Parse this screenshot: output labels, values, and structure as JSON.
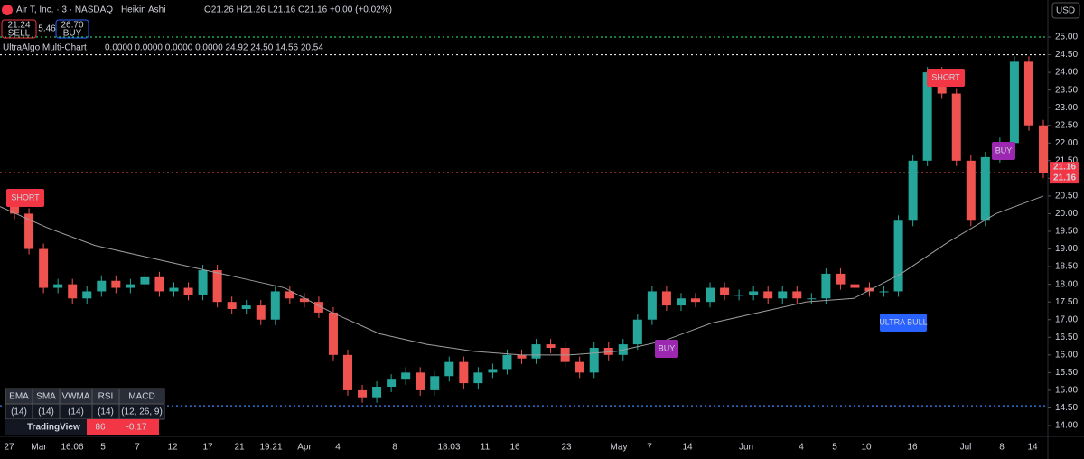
{
  "chart_data": {
    "type": "candlestick",
    "header": {
      "symbol": "Air T, Inc. · 3 · NASDAQ · Heikin Ashi",
      "ohlc": "O21.26 H21.26 L21.16 C21.16 +0.00 (+0.02%)",
      "currency": "USD"
    },
    "trade_box": {
      "sell_price": "21.24",
      "sell": "SELL",
      "spread": "5.46",
      "buy_price": "26.70",
      "buy": "BUY"
    },
    "indicator": {
      "name": "UltraAlgo Multi-Chart",
      "values": "0.0000 0.0000 0.0000 0.0000 24.92 24.50 14.56 20.54"
    },
    "ylim": [
      14,
      25
    ],
    "yticks": [
      {
        "value": 25,
        "label": "25.00"
      },
      {
        "value": 24.5,
        "label": "24.50"
      },
      {
        "value": 24,
        "label": "24.00"
      },
      {
        "value": 23.5,
        "label": "23.50"
      },
      {
        "value": 23,
        "label": "23.00"
      },
      {
        "value": 22.5,
        "label": "22.50"
      },
      {
        "value": 22,
        "label": "22.00"
      },
      {
        "value": 21.5,
        "label": "21.50"
      },
      {
        "value": 21,
        "label": "21.00"
      },
      {
        "value": 20.5,
        "label": "20.50"
      },
      {
        "value": 20,
        "label": "20.00"
      },
      {
        "value": 19.5,
        "label": "19.50"
      },
      {
        "value": 19,
        "label": "19.00"
      },
      {
        "value": 18.5,
        "label": "18.50"
      },
      {
        "value": 18,
        "label": "18.00"
      },
      {
        "value": 17.5,
        "label": "17.50"
      },
      {
        "value": 17,
        "label": "17.00"
      },
      {
        "value": 16.5,
        "label": "16.50"
      },
      {
        "value": 16,
        "label": "16.00"
      },
      {
        "value": 15.5,
        "label": "15.50"
      },
      {
        "value": 15,
        "label": "15.00"
      },
      {
        "value": 14.5,
        "label": "14.50"
      },
      {
        "value": 14,
        "label": "14.00"
      }
    ],
    "time_labels": [
      "27",
      "Mar",
      "16:06",
      "5",
      "7",
      "12",
      "17",
      "21",
      "19:21",
      "Apr",
      "4",
      "8",
      "18:03",
      "11",
      "16",
      "23",
      "May",
      "7",
      "14",
      "Jun",
      "4",
      "5",
      "10",
      "16",
      "Jul",
      "8",
      "14"
    ],
    "series": [
      {
        "name": "Price",
        "values": [
          20.2,
          20.0,
          19.0,
          17.9,
          18.0,
          17.6,
          17.8,
          18.1,
          17.9,
          18.0,
          18.2,
          17.8,
          17.9,
          17.7,
          18.4,
          17.5,
          17.3,
          17.4,
          17.0,
          17.8,
          17.6,
          17.5,
          17.2,
          16.0,
          15.0,
          14.8,
          15.1,
          15.3,
          15.5,
          15.0,
          15.4,
          15.8,
          15.2,
          15.5,
          15.6,
          16.0,
          15.9,
          16.3,
          16.2,
          15.8,
          15.5,
          16.2,
          16.0,
          16.3,
          17.0,
          17.8,
          17.4,
          17.6,
          17.5,
          17.9,
          17.7,
          17.7,
          17.8,
          17.6,
          17.8,
          17.6,
          17.6,
          18.3,
          18.0,
          17.9,
          17.8,
          17.8,
          19.8,
          21.5,
          24.0,
          23.4,
          21.5,
          19.8,
          21.6,
          22.0,
          24.3,
          22.5,
          21.16
        ]
      },
      {
        "name": "Moving average",
        "values": [
          20.2,
          19.6,
          19.1,
          18.8,
          18.5,
          18.2,
          17.9,
          17.2,
          16.6,
          16.3,
          16.1,
          16.0,
          16.0,
          16.1,
          16.4,
          16.9,
          17.2,
          17.5,
          17.6,
          18.3,
          19.2,
          20.0,
          20.5
        ]
      }
    ],
    "levels": [
      {
        "value": 25,
        "color": "#22c55e"
      },
      {
        "value": 24.5,
        "color": "#e5e7eb"
      },
      {
        "value": 21.16,
        "color": "#ef5350"
      },
      {
        "value": 14.56,
        "color": "#3b82f6"
      }
    ],
    "price_labels": [
      {
        "value": 21.16,
        "label": "21.16"
      },
      {
        "value": 21.16,
        "label": "21.16"
      }
    ],
    "signals": [
      {
        "label": "SHORT",
        "color": "#f23645"
      },
      {
        "label": "SHORT",
        "color": "#f23645"
      },
      {
        "label": "BUY",
        "color": "#9c27b0"
      },
      {
        "label": "BUY",
        "color": "#9c27b0"
      },
      {
        "label": "ULTRA BULL",
        "color": "#2962ff"
      }
    ],
    "table": {
      "header": [
        "EMA",
        "SMA",
        "VWMA",
        "RSI",
        "MACD"
      ],
      "params": [
        "(14)",
        "(14)",
        "(14)",
        "(14)",
        "(12, 26, 9)"
      ],
      "partial": "86",
      "macd": "-0.17"
    },
    "brand": "TradingView"
  }
}
